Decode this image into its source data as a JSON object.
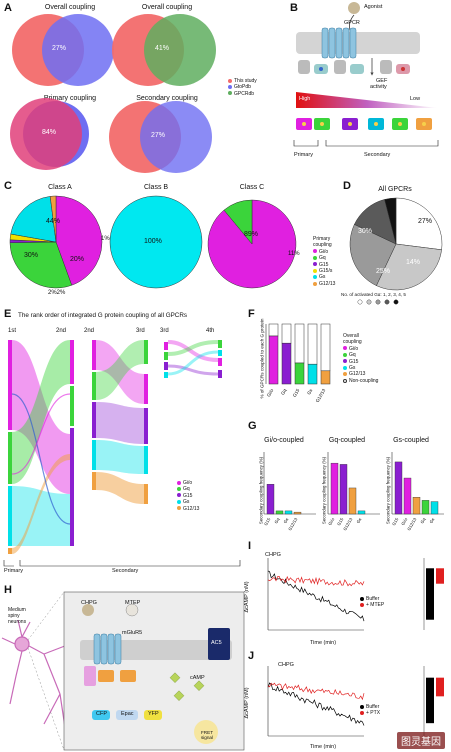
{
  "panels": {
    "A": "A",
    "B": "B",
    "C": "C",
    "D": "D",
    "E": "E",
    "F": "F",
    "G": "G",
    "H": "H",
    "I": "I",
    "J": "J"
  },
  "panelA": {
    "venns": [
      {
        "title": "Overall coupling",
        "overlap": "27%"
      },
      {
        "title": "Overall coupling",
        "overlap": "41%"
      },
      {
        "title": "Primary coupling",
        "overlap": "84%"
      },
      {
        "title": "Secondary coupling",
        "overlap": "27%"
      }
    ],
    "legend": [
      "This study",
      "GtoPdb",
      "GPCRdb"
    ],
    "colors": {
      "this_study": "#f26b6b",
      "gtopdb": "#6e6ef2",
      "gpcrdb": "#5fae5f"
    }
  },
  "panelB": {
    "agonist": "Agonist",
    "gpcr": "GPCR",
    "gef": "GEF",
    "activity": "activity",
    "high": "High",
    "low": "Low",
    "primary": "Primary",
    "secondary": "Secondary"
  },
  "panelC": {
    "legend_title": "Primary",
    "legend_title2": "coupling",
    "legend": [
      "Gi/o",
      "Gq",
      "G15",
      "G15/s",
      "Gs",
      "G12/13"
    ],
    "pies": [
      {
        "title": "Class A",
        "labels": [
          "44%",
          "30%",
          "20%",
          "1%",
          "2%2%"
        ]
      },
      {
        "title": "Class B",
        "labels": [
          "100%"
        ]
      },
      {
        "title": "Class C",
        "labels": [
          "89%",
          "11%"
        ]
      }
    ]
  },
  "panelD": {
    "title": "All GPCRs",
    "labels": [
      "27%",
      "30%",
      "25%",
      "14%",
      "4%"
    ],
    "footer": "No. of activated Gα: 1, 2, 3, 4, 5"
  },
  "panelE": {
    "title": "The rank order of integrated G protein coupling of all GPCRs",
    "ranks": [
      "1st",
      "2nd",
      "2nd",
      "3rd",
      "3rd",
      "4th"
    ],
    "legend": [
      "Gi/o",
      "Gq",
      "G15",
      "Gs",
      "G12/13"
    ],
    "primary": "Primary",
    "secondary": "Secondary"
  },
  "panelF": {
    "ylabel": "% of GPCRs coupled to each G protein",
    "legend_title": "Overall",
    "legend_title2": "coupling",
    "legend": [
      "Gi/o",
      "Gq",
      "G15",
      "Gs",
      "G12/13",
      "Non-coupling"
    ]
  },
  "panelG": {
    "titles": [
      "Gi/o-coupled",
      "Gq-coupled",
      "Gs-coupled"
    ],
    "ylabel": "Secondary coupling frequency (%)"
  },
  "panelH": {
    "neuron": "Medium spiny neurons",
    "chpg": "CHPG",
    "mtep": "MTEP",
    "receptor": "mGluR5",
    "ac5": "AC5",
    "camp": "cAMP",
    "epac": "Epac",
    "cfp": "CFP",
    "yfp": "YFP",
    "fret": "FRET signal"
  },
  "panelI": {
    "stim": "CHPG",
    "ylabel": "ΔcAMP (nM)",
    "xlabel": "Time (min)",
    "legend": [
      "Buffer",
      "+ MTEP"
    ]
  },
  "panelJ": {
    "stim": "CHPG",
    "ylabel": "ΔcAMP (nM)",
    "xlabel": "Time (min)",
    "legend": [
      "Buffer",
      "+ PTX"
    ]
  },
  "watermark": "图灵基因",
  "chart_data": [
    {
      "type": "pie",
      "title": "Class A",
      "categories": [
        "Gi/o",
        "Gq",
        "G15",
        "G15/s",
        "Gs",
        "G12/13"
      ],
      "values": [
        44,
        30,
        1,
        2,
        20,
        2
      ],
      "colors": [
        "#e020e0",
        "#3bd43b",
        "#8a1fd0",
        "#f0e000",
        "#00e0e8",
        "#f0a040"
      ]
    },
    {
      "type": "pie",
      "title": "Class B",
      "categories": [
        "Gs"
      ],
      "values": [
        100
      ],
      "colors": [
        "#00e8f0"
      ]
    },
    {
      "type": "pie",
      "title": "Class C",
      "categories": [
        "Gi/o",
        "Gq"
      ],
      "values": [
        89,
        11
      ],
      "colors": [
        "#e020e0",
        "#3bd43b"
      ]
    },
    {
      "type": "pie",
      "title": "All GPCRs",
      "categories": [
        "1",
        "2",
        "3",
        "4",
        "5"
      ],
      "values": [
        27,
        30,
        25,
        14,
        4
      ],
      "colors": [
        "#ffffff",
        "#c8c8c8",
        "#9a9a9a",
        "#5a5a5a",
        "#111111"
      ]
    },
    {
      "type": "bar",
      "title": "",
      "ylabel": "% of GPCRs coupled to each G protein",
      "ylim": [
        0,
        100
      ],
      "categories": [
        "Gi/o",
        "Gq",
        "G15",
        "Gs",
        "G12/13"
      ],
      "series": [
        {
          "name": "coupled",
          "values": [
            80,
            68,
            35,
            33,
            22
          ]
        },
        {
          "name": "Non-coupling",
          "values": [
            20,
            32,
            65,
            67,
            78
          ]
        }
      ],
      "colors": [
        "#e020e0",
        "#8a1fd0",
        "#3bd43b",
        "#00e0e8",
        "#f0a040"
      ]
    },
    {
      "type": "bar",
      "title": "Gi/o-coupled",
      "ylim": [
        0,
        100
      ],
      "categories": [
        "G15",
        "Gq",
        "Gs",
        "G12/13"
      ],
      "values": [
        48,
        5,
        5,
        3
      ],
      "colors": [
        "#8a1fd0",
        "#3bd43b",
        "#00e0e8",
        "#f0a040"
      ]
    },
    {
      "type": "bar",
      "title": "Gq-coupled",
      "ylim": [
        0,
        100
      ],
      "categories": [
        "Gi/o",
        "G15",
        "G12/13",
        "Gs"
      ],
      "values": [
        82,
        80,
        42,
        5
      ],
      "colors": [
        "#e020e0",
        "#8a1fd0",
        "#f0a040",
        "#00e0e8"
      ]
    },
    {
      "type": "bar",
      "title": "Gs-coupled",
      "ylim": [
        0,
        100
      ],
      "categories": [
        "G15",
        "Gi/o",
        "G12/13",
        "Gq",
        "Gs"
      ],
      "values": [
        84,
        58,
        27,
        22,
        20
      ],
      "colors": [
        "#8a1fd0",
        "#e020e0",
        "#f0a040",
        "#3bd43b",
        "#00e0e8"
      ]
    },
    {
      "type": "line",
      "title": "",
      "xlabel": "Time (min)",
      "ylabel": "ΔcAMP (nM)",
      "xlim": [
        0,
        18
      ],
      "ylim": [
        -600,
        100
      ],
      "series": [
        {
          "name": "Buffer",
          "start": -50,
          "end": -500
        },
        {
          "name": "+ MTEP",
          "start": -100,
          "end": -150
        }
      ]
    },
    {
      "type": "line",
      "title": "",
      "xlabel": "Time (min)",
      "ylabel": "ΔcAMP (nM)",
      "xlim": [
        0,
        18
      ],
      "ylim": [
        -500,
        100
      ],
      "series": [
        {
          "name": "Buffer",
          "start": -60,
          "end": -390
        },
        {
          "name": "+ PTX",
          "start": -60,
          "end": -160
        }
      ]
    }
  ]
}
